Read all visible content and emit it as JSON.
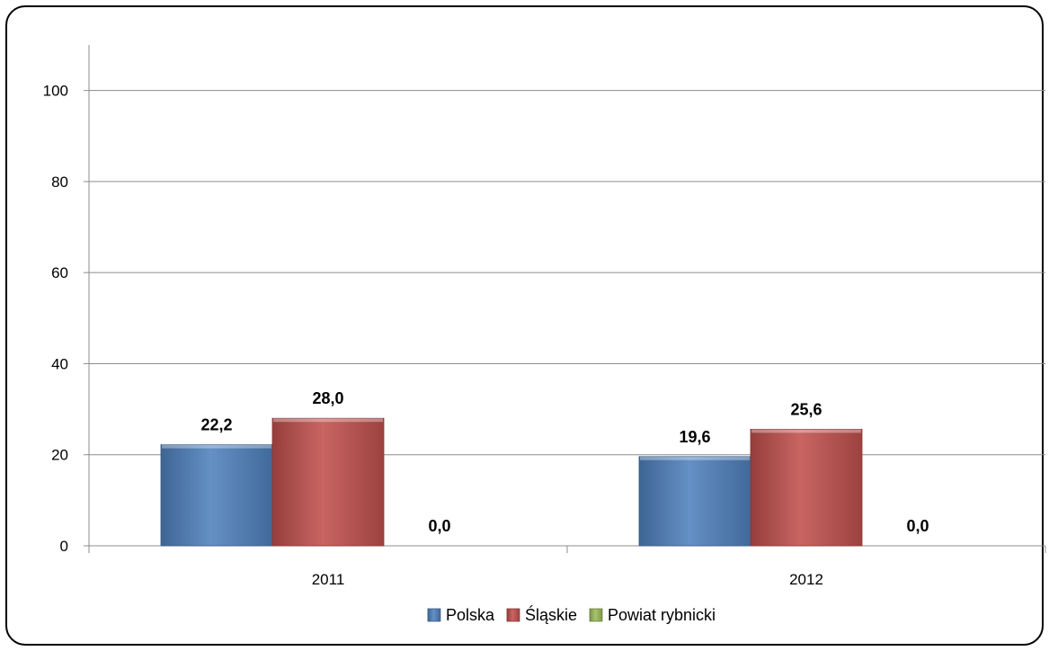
{
  "chart_data": {
    "type": "bar",
    "title": "",
    "xlabel": "",
    "ylabel": "",
    "categories": [
      "2011",
      "2012"
    ],
    "series": [
      {
        "name": "Polska",
        "values": [
          22.2,
          19.6
        ],
        "labels": [
          "22,2",
          "19,6"
        ],
        "color": "#4f81bd"
      },
      {
        "name": "Śląskie",
        "values": [
          28.0,
          25.6
        ],
        "labels": [
          "28,0",
          "25,6"
        ],
        "color": "#c0504d"
      },
      {
        "name": "Powiat rybnicki",
        "values": [
          0.0,
          0.0
        ],
        "labels": [
          "0,0",
          "0,0"
        ],
        "color": "#9bbb59"
      }
    ],
    "ylim": [
      0,
      110
    ],
    "yticks": [
      0,
      20,
      40,
      60,
      80,
      100
    ],
    "grid": true,
    "legend": "bottom"
  }
}
